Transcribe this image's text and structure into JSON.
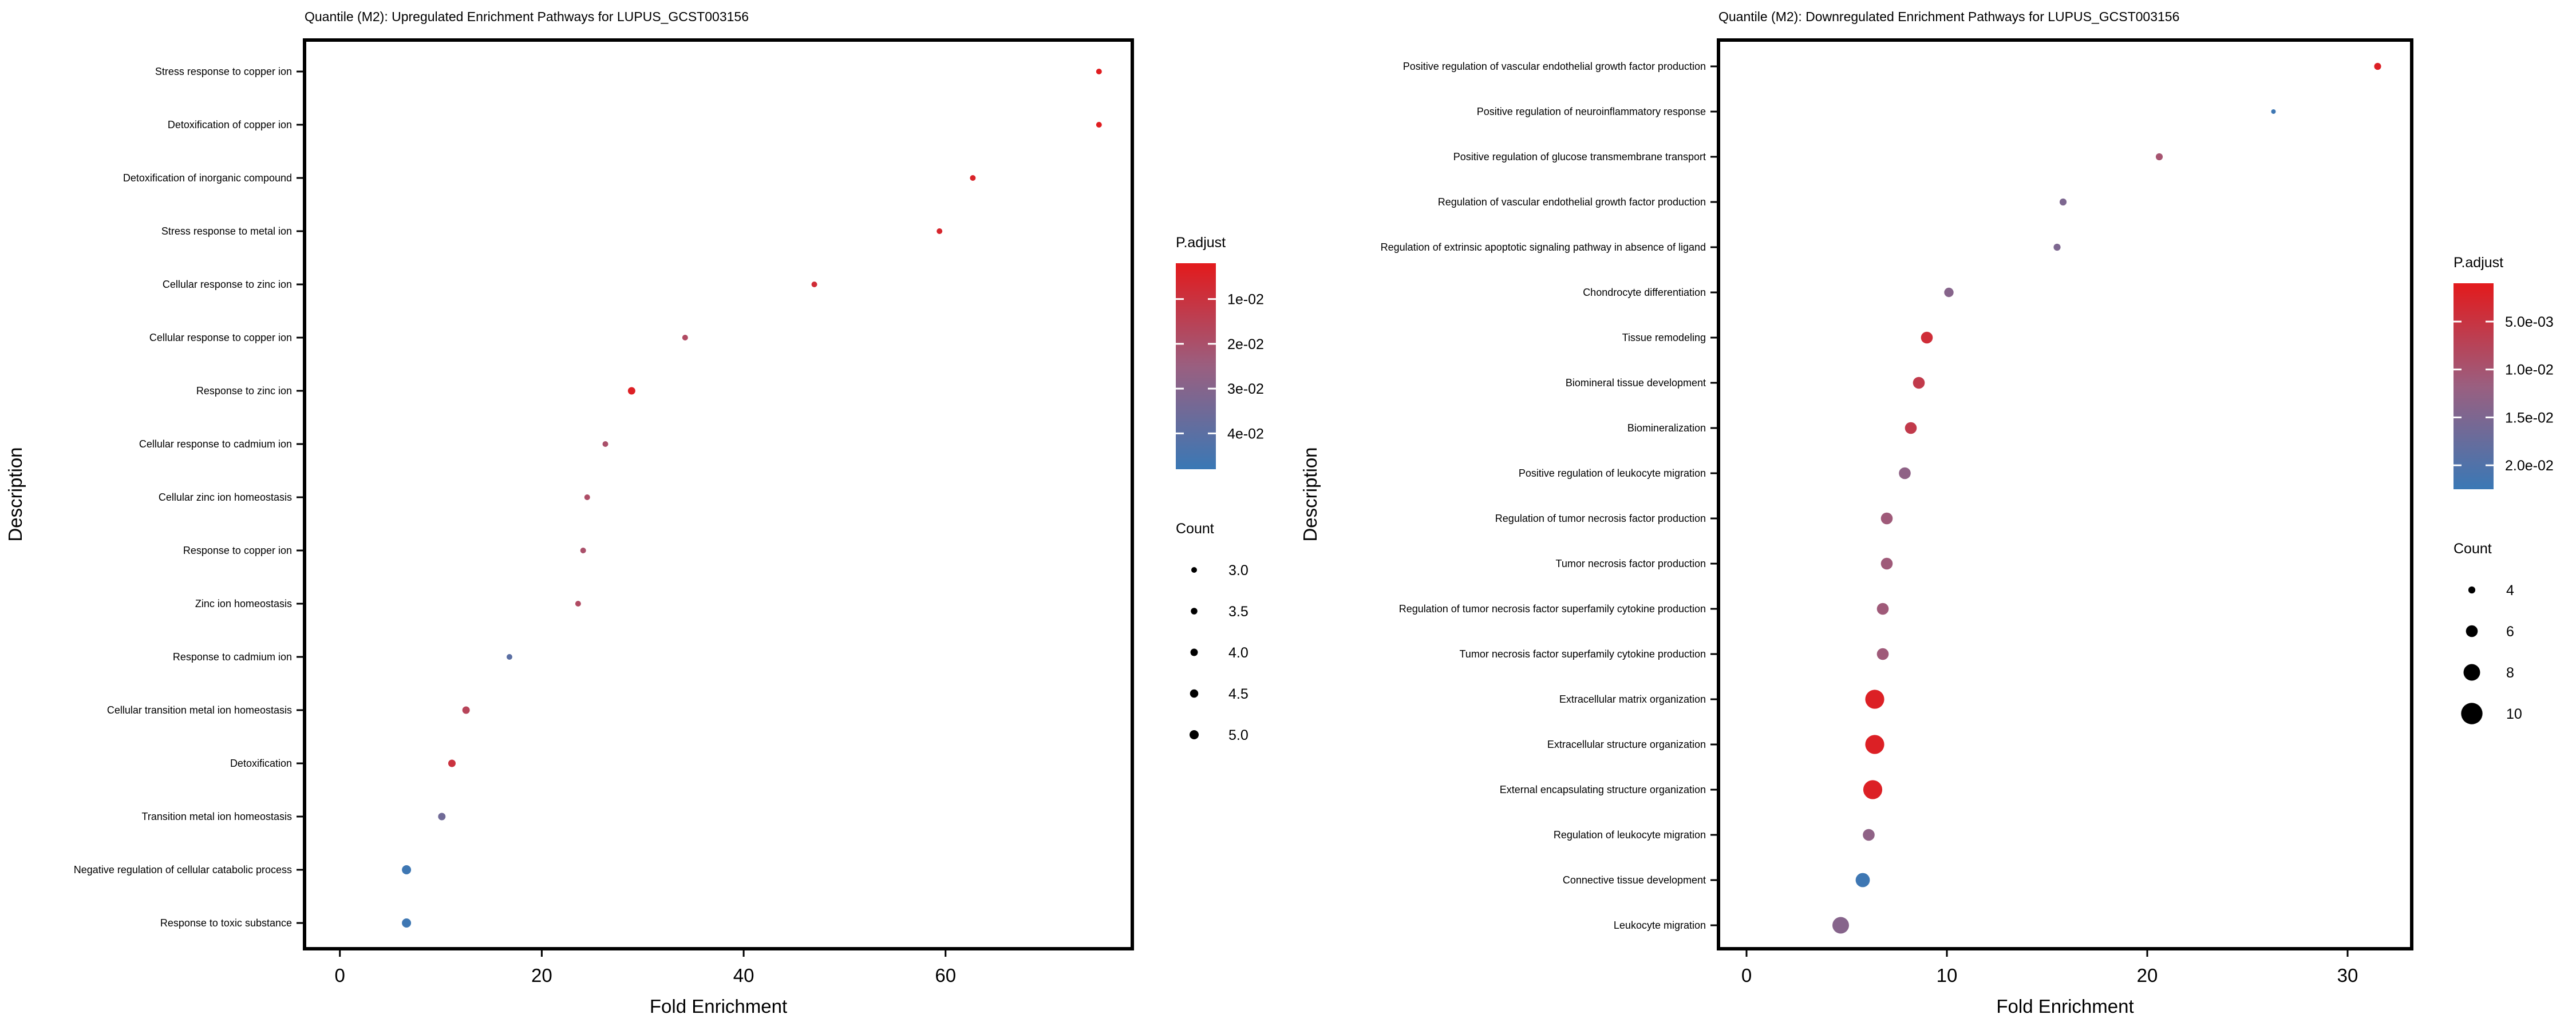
{
  "chart_data": [
    {
      "type": "scatter",
      "title": "Quantile (M2): Upregulated Enrichment Pathways for LUPUS_GCST003156",
      "xlabel": "Fold Enrichment",
      "ylabel": "Description",
      "xlim": [
        -3.5,
        78.5
      ],
      "xticks": [
        0,
        20,
        40,
        60
      ],
      "categories": [
        "Stress response to copper ion",
        "Detoxification of copper ion",
        "Detoxification of inorganic compound",
        "Stress response to metal ion",
        "Cellular response to zinc ion",
        "Cellular response to copper ion",
        "Response to zinc ion",
        "Cellular response to cadmium ion",
        "Cellular zinc ion homeostasis",
        "Response to copper ion",
        "Zinc ion homeostasis",
        "Response to cadmium ion",
        "Cellular transition metal ion homeostasis",
        "Detoxification",
        "Transition metal ion homeostasis",
        "Negative regulation of cellular catabolic process",
        "Response to toxic substance"
      ],
      "fold_enrichment": [
        75.2,
        75.2,
        62.7,
        59.4,
        47.0,
        34.2,
        28.9,
        26.3,
        24.5,
        24.1,
        23.6,
        16.8,
        12.5,
        11.1,
        10.1,
        6.6,
        6.6
      ],
      "count": [
        3,
        3,
        3,
        3,
        3,
        3,
        4,
        3,
        3,
        3,
        3,
        3,
        4,
        4,
        4,
        5,
        5
      ],
      "p_adjust": [
        0.003,
        0.003,
        0.005,
        0.006,
        0.008,
        0.018,
        0.004,
        0.02,
        0.019,
        0.02,
        0.018,
        0.04,
        0.016,
        0.01,
        0.035,
        0.047,
        0.047
      ],
      "color_legend": {
        "title": "P.adjust",
        "range": [
          0.002,
          0.048
        ],
        "ticks": [
          0.01,
          0.02,
          0.03,
          0.04
        ],
        "tick_labels": [
          "1e-02",
          "2e-02",
          "3e-02",
          "4e-02"
        ]
      },
      "size_legend": {
        "title": "Count",
        "values": [
          3.0,
          3.5,
          4.0,
          4.5,
          5.0
        ],
        "labels": [
          "3.0",
          "3.5",
          "4.0",
          "4.5",
          "5.0"
        ]
      }
    },
    {
      "type": "scatter",
      "title": "Quantile (M2): Downregulated Enrichment Pathways for LUPUS_GCST003156",
      "xlabel": "Fold Enrichment",
      "ylabel": "Description",
      "xlim": [
        -1.4,
        33.2
      ],
      "xticks": [
        0,
        10,
        20,
        30
      ],
      "categories": [
        "Positive regulation of vascular endothelial growth factor production",
        "Positive regulation of neuroinflammatory response",
        "Positive regulation of glucose transmembrane transport",
        "Regulation of vascular endothelial growth factor production",
        "Regulation of extrinsic apoptotic signaling pathway in absence of ligand",
        "Chondrocyte differentiation",
        "Tissue remodeling",
        "Biomineral tissue development",
        "Biomineralization",
        "Positive regulation of leukocyte migration",
        "Regulation of tumor necrosis factor production",
        "Tumor necrosis factor production",
        "Regulation of tumor necrosis factor superfamily cytokine production",
        "Tumor necrosis factor superfamily cytokine production",
        "Extracellular matrix organization",
        "Extracellular structure organization",
        "External encapsulating structure organization",
        "Regulation of leukocyte migration",
        "Connective tissue development",
        "Leukocyte migration"
      ],
      "fold_enrichment": [
        31.5,
        26.3,
        20.6,
        15.8,
        15.5,
        10.1,
        9.0,
        8.6,
        8.2,
        7.9,
        7.0,
        7.0,
        6.8,
        6.8,
        6.4,
        6.4,
        6.3,
        6.1,
        5.8,
        4.7
      ],
      "count": [
        4,
        3,
        4,
        4,
        4,
        5,
        6,
        6,
        6,
        6,
        6,
        6,
        6,
        6,
        9,
        9,
        9,
        6,
        7,
        8
      ],
      "p_adjust": [
        0.002,
        0.022,
        0.01,
        0.015,
        0.015,
        0.014,
        0.004,
        0.006,
        0.006,
        0.013,
        0.011,
        0.011,
        0.011,
        0.011,
        0.002,
        0.002,
        0.002,
        0.013,
        0.022,
        0.014
      ],
      "color_legend": {
        "title": "P.adjust",
        "range": [
          0.001,
          0.0225
        ],
        "ticks": [
          0.005,
          0.01,
          0.015,
          0.02
        ],
        "tick_labels": [
          "5.0e-03",
          "1.0e-02",
          "1.5e-02",
          "2.0e-02"
        ]
      },
      "size_legend": {
        "title": "Count",
        "values": [
          4,
          6,
          8,
          10
        ],
        "labels": [
          "4",
          "6",
          "8",
          "10"
        ]
      }
    }
  ]
}
